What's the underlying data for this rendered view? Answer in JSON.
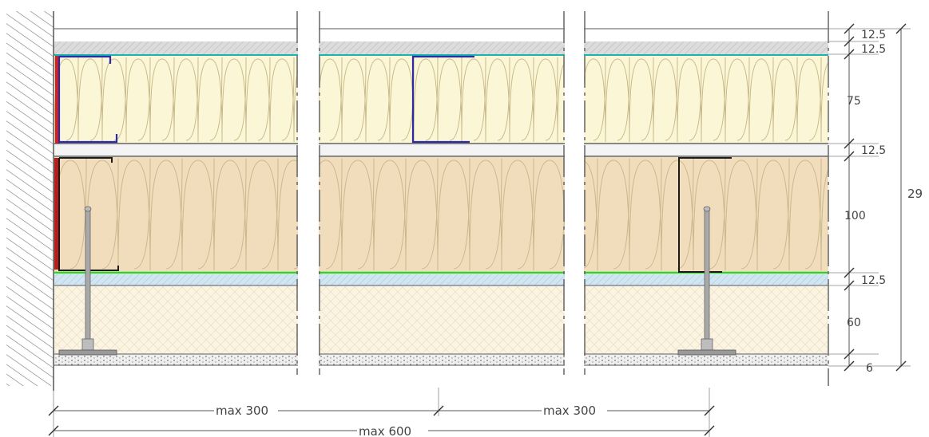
{
  "layer_thickness_labels": {
    "board_1": "12.5",
    "board_2": "12.5",
    "insulation_upper": "75",
    "board_3": "12.5",
    "insulation_lower": "100",
    "board_4": "12.5",
    "screed": "60",
    "base_layer": "6"
  },
  "total_thickness_label": "29",
  "span_labels": {
    "span_left": "max 300",
    "span_right": "max 300",
    "span_total": "max 600"
  },
  "colors": {
    "board_upper": "#dcdcdc",
    "insulation_upper": "#fbf7d6",
    "insulation_lower": "#f1dcbc",
    "blue_board": "#d2e6f2",
    "screed": "#fbf4e2",
    "teal_line": "#19b4b0",
    "green_line": "#2ed12e",
    "profile_blue": "#2d2aa8",
    "red_strip": "#d42020",
    "hatch_wall": "#777777"
  }
}
